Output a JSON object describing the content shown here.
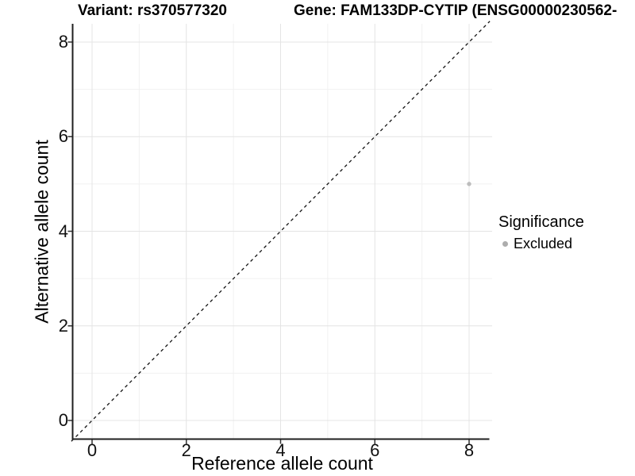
{
  "chart_data": {
    "type": "scatter",
    "title_left": "Variant: rs370577320",
    "title_right": "Gene: FAM133DP-CYTIP (ENSG00000230562-",
    "xlabel": "Reference allele count",
    "ylabel": "Alternative allele count",
    "xlim": [
      -0.44,
      8.44
    ],
    "ylim": [
      -0.44,
      8.44
    ],
    "x_ticks": [
      0,
      2,
      4,
      6,
      8
    ],
    "y_ticks": [
      0,
      2,
      4,
      6,
      8
    ],
    "x_minor_gridlines": [
      1,
      3,
      5,
      7
    ],
    "y_minor_gridlines": [
      1,
      3,
      5,
      7
    ],
    "grid": "major+minor",
    "points": [
      {
        "x": 8,
        "y": 5,
        "series": "Excluded",
        "color": "#bdbdbd"
      }
    ],
    "reference_line": {
      "style": "dashed",
      "slope": 1,
      "intercept": 0,
      "color": "#141414"
    },
    "legend": {
      "title": "Significance",
      "position": "right",
      "items": [
        {
          "label": "Excluded",
          "color": "#adadad"
        }
      ]
    }
  },
  "colors": {
    "background": "#ffffff",
    "grid_major": "#e4e4e4",
    "grid_minor": "#f1f1f1",
    "axis": "#1f1f1f",
    "tick": "#333333",
    "point": "#bdbdbd"
  }
}
